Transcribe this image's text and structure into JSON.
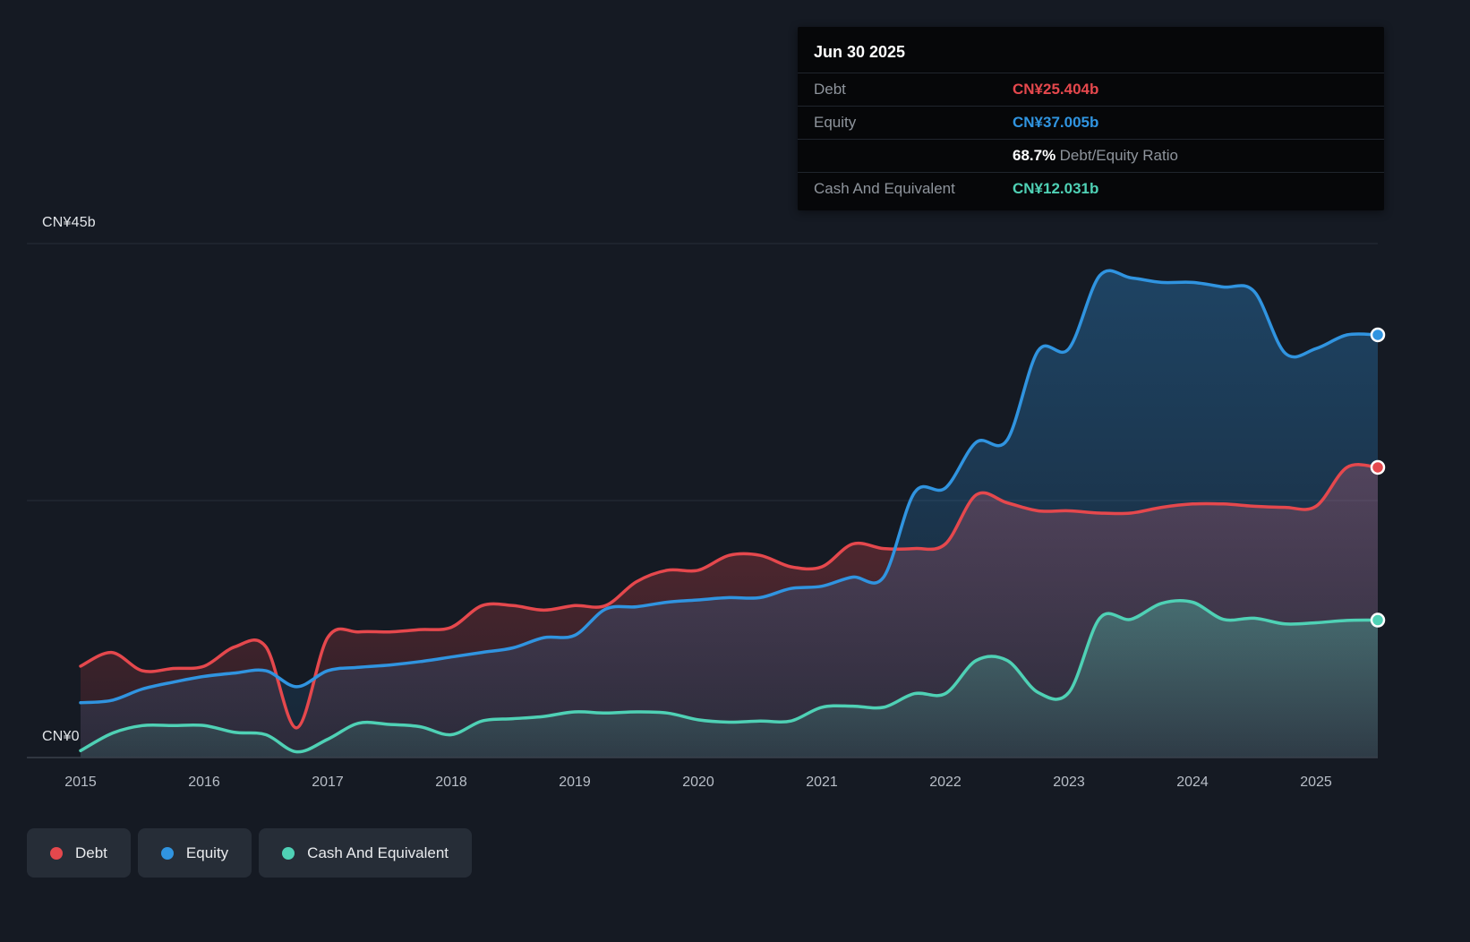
{
  "colors": {
    "background": "#151a23",
    "debt": "#e5484d",
    "equity": "#3094e0",
    "cash": "#4fd1b5",
    "grid": "#262d38",
    "axis_line": "#39404b",
    "axis_text": "#b8bec7",
    "y_label_text": "#e3e6ea",
    "tooltip_bg": "#060709",
    "tooltip_label": "#8e949c",
    "legend_bg": "#262d37",
    "marker_ring": "#ffffff"
  },
  "tooltip": {
    "date": "Jun 30 2025",
    "debt_label": "Debt",
    "debt_value": "CN¥25.404b",
    "equity_label": "Equity",
    "equity_value": "CN¥37.005b",
    "ratio_value": "68.7%",
    "ratio_label": "Debt/Equity Ratio",
    "cash_label": "Cash And Equivalent",
    "cash_value": "CN¥12.031b"
  },
  "axis": {
    "y_top_label": "CN¥45b",
    "y_zero_label": "CN¥0"
  },
  "legend": {
    "items": [
      {
        "label": "Debt",
        "color_key": "debt"
      },
      {
        "label": "Equity",
        "color_key": "equity"
      },
      {
        "label": "Cash And Equivalent",
        "color_key": "cash"
      }
    ]
  },
  "chart_data": {
    "type": "area",
    "x_unit": "decimal_year",
    "x_range": [
      2015.0,
      2025.5
    ],
    "ylim": [
      0,
      45
    ],
    "y_currency": "CN¥ billions",
    "gridline_values": [
      45,
      22.5
    ],
    "x_ticks": [
      2015,
      2016,
      2017,
      2018,
      2019,
      2020,
      2021,
      2022,
      2023,
      2024,
      2025
    ],
    "x": [
      2015.0,
      2015.25,
      2015.5,
      2015.75,
      2016.0,
      2016.25,
      2016.5,
      2016.75,
      2017.0,
      2017.25,
      2017.5,
      2017.75,
      2018.0,
      2018.25,
      2018.5,
      2018.75,
      2019.0,
      2019.25,
      2019.5,
      2019.75,
      2020.0,
      2020.25,
      2020.5,
      2020.75,
      2021.0,
      2021.25,
      2021.5,
      2021.75,
      2022.0,
      2022.25,
      2022.5,
      2022.75,
      2023.0,
      2023.25,
      2023.5,
      2023.75,
      2024.0,
      2024.25,
      2024.5,
      2024.75,
      2025.0,
      2025.25,
      2025.5
    ],
    "series": [
      {
        "key": "debt",
        "name": "Debt",
        "color_key": "debt",
        "values": [
          8.0,
          9.2,
          7.6,
          7.8,
          8.0,
          9.7,
          9.7,
          2.6,
          10.5,
          11.0,
          11.0,
          11.2,
          11.4,
          13.3,
          13.3,
          12.9,
          13.3,
          13.3,
          15.4,
          16.4,
          16.4,
          17.7,
          17.7,
          16.7,
          16.7,
          18.7,
          18.3,
          18.3,
          18.7,
          23.0,
          22.3,
          21.6,
          21.6,
          21.4,
          21.4,
          21.9,
          22.2,
          22.2,
          22.0,
          21.9,
          22.0,
          25.4,
          25.404
        ]
      },
      {
        "key": "equity",
        "name": "Equity",
        "color_key": "equity",
        "values": [
          4.8,
          5.0,
          6.0,
          6.6,
          7.1,
          7.4,
          7.6,
          6.2,
          7.6,
          7.9,
          8.1,
          8.4,
          8.8,
          9.2,
          9.6,
          10.5,
          10.7,
          13.0,
          13.2,
          13.6,
          13.8,
          14.0,
          14.0,
          14.8,
          15.0,
          15.8,
          15.8,
          23.2,
          23.6,
          27.6,
          27.8,
          35.6,
          35.8,
          42.2,
          42.0,
          41.6,
          41.6,
          41.2,
          40.8,
          35.4,
          35.8,
          37.0,
          37.005
        ]
      },
      {
        "key": "cash",
        "name": "Cash And Equivalent",
        "color_key": "cash",
        "values": [
          0.6,
          2.1,
          2.8,
          2.8,
          2.8,
          2.2,
          2.0,
          0.5,
          1.6,
          3.0,
          2.9,
          2.7,
          2.0,
          3.2,
          3.4,
          3.6,
          4.0,
          3.9,
          4.0,
          3.9,
          3.3,
          3.1,
          3.2,
          3.2,
          4.4,
          4.5,
          4.4,
          5.6,
          5.6,
          8.5,
          8.5,
          5.7,
          5.7,
          12.2,
          12.1,
          13.5,
          13.6,
          12.1,
          12.2,
          11.7,
          11.8,
          12.0,
          12.031
        ]
      }
    ]
  }
}
